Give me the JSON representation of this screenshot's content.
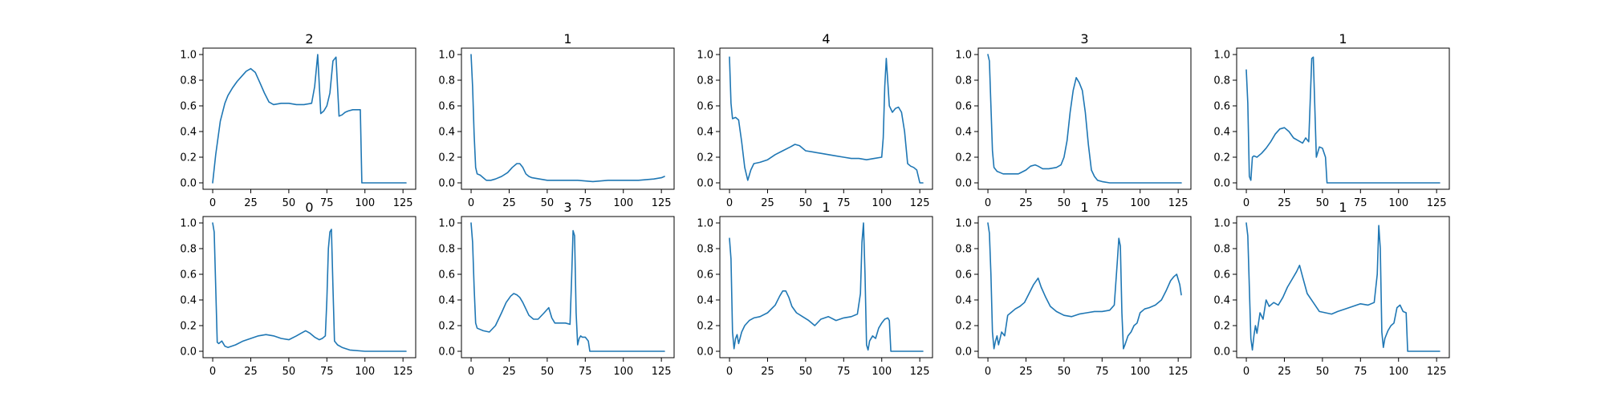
{
  "chart_data": [
    {
      "type": "line",
      "title": "2",
      "xlim": [
        0,
        127
      ],
      "ylim": [
        0,
        1
      ],
      "xticks": [
        0,
        25,
        50,
        75,
        100,
        125
      ],
      "yticks": [
        0.0,
        0.2,
        0.4,
        0.6,
        0.8,
        1.0
      ],
      "series": [
        {
          "x": [
            0,
            2,
            5,
            8,
            10,
            13,
            16,
            19,
            22,
            25,
            28,
            31,
            34,
            37,
            40,
            45,
            50,
            55,
            60,
            65,
            67,
            69,
            71,
            73,
            75,
            77,
            79,
            81,
            83,
            85,
            87,
            89,
            92,
            95,
            97,
            98,
            100,
            110,
            120,
            127
          ],
          "y": [
            0.0,
            0.22,
            0.48,
            0.62,
            0.68,
            0.74,
            0.79,
            0.83,
            0.87,
            0.89,
            0.86,
            0.78,
            0.7,
            0.63,
            0.61,
            0.62,
            0.62,
            0.61,
            0.61,
            0.62,
            0.75,
            1.0,
            0.54,
            0.56,
            0.6,
            0.7,
            0.95,
            0.98,
            0.52,
            0.53,
            0.55,
            0.56,
            0.57,
            0.57,
            0.57,
            0.0,
            0.0,
            0.0,
            0.0,
            0.0
          ]
        }
      ]
    },
    {
      "type": "line",
      "title": "1",
      "xlim": [
        0,
        127
      ],
      "ylim": [
        0,
        1
      ],
      "xticks": [
        0,
        25,
        50,
        75,
        100,
        125
      ],
      "yticks": [
        0.0,
        0.2,
        0.4,
        0.6,
        0.8,
        1.0
      ],
      "series": [
        {
          "x": [
            0,
            1,
            2,
            3,
            4,
            6,
            8,
            10,
            13,
            16,
            20,
            24,
            27,
            30,
            32,
            34,
            36,
            38,
            40,
            45,
            50,
            60,
            70,
            80,
            90,
            100,
            110,
            120,
            125,
            127
          ],
          "y": [
            1.0,
            0.75,
            0.38,
            0.12,
            0.07,
            0.06,
            0.04,
            0.02,
            0.02,
            0.03,
            0.05,
            0.08,
            0.12,
            0.15,
            0.15,
            0.12,
            0.07,
            0.05,
            0.04,
            0.03,
            0.02,
            0.02,
            0.02,
            0.01,
            0.02,
            0.02,
            0.02,
            0.03,
            0.04,
            0.05
          ]
        }
      ]
    },
    {
      "type": "line",
      "title": "4",
      "xlim": [
        0,
        127
      ],
      "ylim": [
        0,
        1
      ],
      "xticks": [
        0,
        25,
        50,
        75,
        100,
        125
      ],
      "yticks": [
        0.0,
        0.2,
        0.4,
        0.6,
        0.8,
        1.0
      ],
      "series": [
        {
          "x": [
            0,
            1,
            2,
            4,
            6,
            8,
            10,
            12,
            14,
            16,
            20,
            25,
            30,
            35,
            40,
            43,
            46,
            50,
            55,
            60,
            65,
            70,
            75,
            80,
            85,
            90,
            95,
            100,
            101,
            102,
            103,
            105,
            107,
            109,
            111,
            113,
            115,
            117,
            119,
            121,
            123,
            125,
            127
          ],
          "y": [
            0.98,
            0.62,
            0.5,
            0.51,
            0.49,
            0.32,
            0.12,
            0.02,
            0.1,
            0.15,
            0.16,
            0.18,
            0.22,
            0.25,
            0.28,
            0.3,
            0.29,
            0.25,
            0.24,
            0.23,
            0.22,
            0.21,
            0.2,
            0.19,
            0.19,
            0.18,
            0.19,
            0.2,
            0.35,
            0.75,
            0.97,
            0.6,
            0.55,
            0.58,
            0.59,
            0.55,
            0.4,
            0.15,
            0.13,
            0.12,
            0.1,
            0.0,
            0.0
          ]
        }
      ]
    },
    {
      "type": "line",
      "title": "3",
      "xlim": [
        0,
        127
      ],
      "ylim": [
        0,
        1
      ],
      "xticks": [
        0,
        25,
        50,
        75,
        100,
        125
      ],
      "yticks": [
        0.0,
        0.2,
        0.4,
        0.6,
        0.8,
        1.0
      ],
      "series": [
        {
          "x": [
            0,
            1,
            2,
            3,
            4,
            6,
            8,
            10,
            13,
            16,
            20,
            25,
            28,
            31,
            33,
            36,
            40,
            45,
            48,
            50,
            52,
            54,
            56,
            58,
            60,
            62,
            64,
            66,
            68,
            70,
            72,
            75,
            80,
            90,
            100,
            110,
            120,
            127
          ],
          "y": [
            1.0,
            0.95,
            0.6,
            0.25,
            0.12,
            0.09,
            0.08,
            0.07,
            0.07,
            0.07,
            0.07,
            0.1,
            0.13,
            0.14,
            0.13,
            0.11,
            0.11,
            0.12,
            0.14,
            0.2,
            0.33,
            0.55,
            0.72,
            0.82,
            0.78,
            0.72,
            0.55,
            0.3,
            0.1,
            0.05,
            0.02,
            0.01,
            0.0,
            0.0,
            0.0,
            0.0,
            0.0,
            0.0
          ]
        }
      ]
    },
    {
      "type": "line",
      "title": "1",
      "xlim": [
        0,
        127
      ],
      "ylim": [
        0,
        1
      ],
      "xticks": [
        0,
        25,
        50,
        75,
        100,
        125
      ],
      "yticks": [
        0.0,
        0.2,
        0.4,
        0.6,
        0.8,
        1.0
      ],
      "series": [
        {
          "x": [
            0,
            1,
            2,
            3,
            4,
            5,
            7,
            10,
            13,
            16,
            19,
            22,
            25,
            28,
            31,
            34,
            37,
            39,
            41,
            43,
            44,
            46,
            48,
            50,
            52,
            53,
            55,
            60,
            80,
            100,
            120,
            127
          ],
          "y": [
            0.88,
            0.62,
            0.05,
            0.02,
            0.2,
            0.21,
            0.2,
            0.23,
            0.27,
            0.32,
            0.38,
            0.42,
            0.43,
            0.4,
            0.35,
            0.33,
            0.31,
            0.35,
            0.32,
            0.97,
            0.98,
            0.2,
            0.28,
            0.27,
            0.2,
            0.0,
            0.0,
            0.0,
            0.0,
            0.0,
            0.0,
            0.0
          ]
        }
      ]
    },
    {
      "type": "line",
      "title": "0",
      "xlim": [
        0,
        127
      ],
      "ylim": [
        0,
        1
      ],
      "xticks": [
        0,
        25,
        50,
        75,
        100,
        125
      ],
      "yticks": [
        0.0,
        0.2,
        0.4,
        0.6,
        0.8,
        1.0
      ],
      "series": [
        {
          "x": [
            0,
            1,
            2,
            3,
            4,
            6,
            8,
            10,
            15,
            20,
            25,
            30,
            35,
            40,
            45,
            50,
            55,
            58,
            61,
            64,
            67,
            70,
            72,
            74,
            75,
            76,
            77,
            78,
            79,
            80,
            82,
            85,
            90,
            100,
            110,
            127
          ],
          "y": [
            1.0,
            0.93,
            0.5,
            0.07,
            0.06,
            0.08,
            0.04,
            0.03,
            0.05,
            0.08,
            0.1,
            0.12,
            0.13,
            0.12,
            0.1,
            0.09,
            0.12,
            0.14,
            0.16,
            0.14,
            0.11,
            0.09,
            0.1,
            0.12,
            0.4,
            0.8,
            0.93,
            0.95,
            0.5,
            0.08,
            0.05,
            0.03,
            0.01,
            0.0,
            0.0,
            0.0
          ]
        }
      ]
    },
    {
      "type": "line",
      "title": "3",
      "xlim": [
        0,
        127
      ],
      "ylim": [
        0,
        1
      ],
      "xticks": [
        0,
        25,
        50,
        75,
        100,
        125
      ],
      "yticks": [
        0.0,
        0.2,
        0.4,
        0.6,
        0.8,
        1.0
      ],
      "series": [
        {
          "x": [
            0,
            1,
            2,
            3,
            4,
            6,
            8,
            12,
            16,
            20,
            23,
            26,
            28,
            30,
            32,
            34,
            36,
            38,
            41,
            44,
            48,
            51,
            53,
            55,
            58,
            62,
            65,
            66,
            67,
            68,
            69,
            70,
            71,
            72,
            73,
            75,
            77,
            78,
            80,
            90,
            100,
            110,
            120,
            127
          ],
          "y": [
            1.0,
            0.85,
            0.5,
            0.22,
            0.18,
            0.17,
            0.16,
            0.15,
            0.2,
            0.3,
            0.38,
            0.43,
            0.45,
            0.44,
            0.42,
            0.38,
            0.33,
            0.28,
            0.25,
            0.25,
            0.3,
            0.34,
            0.26,
            0.22,
            0.22,
            0.22,
            0.21,
            0.55,
            0.94,
            0.9,
            0.3,
            0.05,
            0.1,
            0.12,
            0.11,
            0.11,
            0.08,
            0.0,
            0.0,
            0.0,
            0.0,
            0.0,
            0.0,
            0.0
          ]
        }
      ]
    },
    {
      "type": "line",
      "title": "1",
      "xlim": [
        0,
        127
      ],
      "ylim": [
        0,
        1
      ],
      "xticks": [
        0,
        25,
        50,
        75,
        100,
        125
      ],
      "yticks": [
        0.0,
        0.2,
        0.4,
        0.6,
        0.8,
        1.0
      ],
      "series": [
        {
          "x": [
            0,
            1,
            2,
            3,
            4,
            5,
            6,
            8,
            10,
            13,
            16,
            20,
            25,
            30,
            33,
            35,
            37,
            39,
            41,
            44,
            48,
            52,
            56,
            60,
            65,
            70,
            75,
            80,
            84,
            86,
            87,
            88,
            89,
            90,
            91,
            92,
            94,
            96,
            98,
            100,
            102,
            104,
            105,
            106,
            110,
            120,
            127
          ],
          "y": [
            0.88,
            0.72,
            0.15,
            0.02,
            0.1,
            0.13,
            0.06,
            0.15,
            0.2,
            0.24,
            0.26,
            0.27,
            0.3,
            0.36,
            0.43,
            0.47,
            0.47,
            0.42,
            0.35,
            0.3,
            0.27,
            0.24,
            0.2,
            0.25,
            0.27,
            0.24,
            0.26,
            0.27,
            0.29,
            0.45,
            0.85,
            1.0,
            0.6,
            0.05,
            0.01,
            0.08,
            0.12,
            0.1,
            0.18,
            0.22,
            0.25,
            0.26,
            0.24,
            0.0,
            0.0,
            0.0,
            0.0
          ]
        }
      ]
    },
    {
      "type": "line",
      "title": "1",
      "xlim": [
        0,
        127
      ],
      "ylim": [
        0,
        1
      ],
      "xticks": [
        0,
        25,
        50,
        75,
        100,
        125
      ],
      "yticks": [
        0.0,
        0.2,
        0.4,
        0.6,
        0.8,
        1.0
      ],
      "series": [
        {
          "x": [
            0,
            1,
            2,
            3,
            4,
            5,
            6,
            7,
            9,
            11,
            13,
            15,
            18,
            21,
            24,
            27,
            30,
            33,
            35,
            38,
            41,
            45,
            50,
            55,
            60,
            65,
            70,
            75,
            80,
            83,
            85,
            86,
            87,
            88,
            89,
            90,
            92,
            94,
            96,
            98,
            100,
            103,
            106,
            110,
            114,
            117,
            120,
            122,
            124,
            126,
            127
          ],
          "y": [
            1.0,
            0.92,
            0.6,
            0.15,
            0.02,
            0.08,
            0.12,
            0.05,
            0.15,
            0.12,
            0.28,
            0.3,
            0.33,
            0.35,
            0.38,
            0.45,
            0.52,
            0.57,
            0.5,
            0.42,
            0.35,
            0.31,
            0.28,
            0.27,
            0.29,
            0.3,
            0.31,
            0.31,
            0.32,
            0.36,
            0.7,
            0.88,
            0.82,
            0.3,
            0.02,
            0.05,
            0.12,
            0.15,
            0.2,
            0.22,
            0.3,
            0.33,
            0.34,
            0.36,
            0.4,
            0.47,
            0.55,
            0.58,
            0.6,
            0.52,
            0.44
          ]
        }
      ]
    },
    {
      "type": "line",
      "title": "1",
      "xlim": [
        0,
        127
      ],
      "ylim": [
        0,
        1
      ],
      "xticks": [
        0,
        25,
        50,
        75,
        100,
        125
      ],
      "yticks": [
        0.0,
        0.2,
        0.4,
        0.6,
        0.8,
        1.0
      ],
      "series": [
        {
          "x": [
            0,
            1,
            2,
            3,
            4,
            5,
            6,
            7,
            9,
            11,
            13,
            15,
            18,
            21,
            24,
            27,
            30,
            33,
            35,
            37,
            40,
            44,
            48,
            52,
            56,
            60,
            65,
            70,
            75,
            80,
            84,
            86,
            87,
            88,
            89,
            90,
            91,
            93,
            95,
            97,
            99,
            101,
            103,
            105,
            106,
            110,
            120,
            127
          ],
          "y": [
            1.0,
            0.9,
            0.5,
            0.1,
            0.01,
            0.12,
            0.2,
            0.14,
            0.3,
            0.25,
            0.4,
            0.35,
            0.38,
            0.36,
            0.42,
            0.5,
            0.56,
            0.62,
            0.67,
            0.58,
            0.45,
            0.38,
            0.31,
            0.3,
            0.29,
            0.31,
            0.33,
            0.35,
            0.37,
            0.36,
            0.38,
            0.6,
            0.98,
            0.8,
            0.15,
            0.03,
            0.1,
            0.16,
            0.2,
            0.22,
            0.34,
            0.36,
            0.31,
            0.3,
            0.0,
            0.0,
            0.0,
            0.0
          ]
        }
      ]
    }
  ]
}
